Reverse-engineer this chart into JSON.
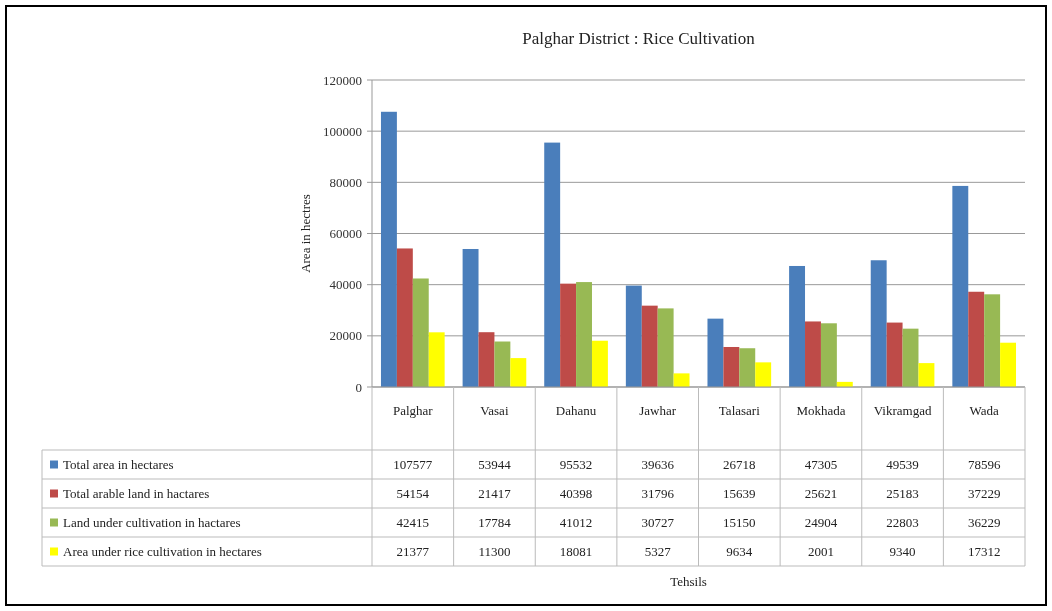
{
  "chart_data": {
    "type": "bar",
    "title": "Palghar District : Rice Cultivation",
    "annotations": [
      "Tehsils"
    ],
    "ylabel": "Area in hectres",
    "categories": [
      "Palghar",
      "Vasai",
      "Dahanu",
      "Jawhar",
      "Talasari",
      "Mokhada",
      "Vikramgad",
      "Wada"
    ],
    "series": [
      {
        "name": "Total area in hectares",
        "color": "#4a7ebb",
        "values": [
          107577,
          53944,
          95532,
          39636,
          26718,
          47305,
          49539,
          78596
        ]
      },
      {
        "name": "Total arable land in hactares",
        "color": "#be4b48",
        "values": [
          54154,
          21417,
          40398,
          31796,
          15639,
          25621,
          25183,
          37229
        ]
      },
      {
        "name": "Land under cultivation in hactares",
        "color": "#98b954",
        "values": [
          42415,
          17784,
          41012,
          30727,
          15150,
          24904,
          22803,
          36229
        ]
      },
      {
        "name": "Area under rice cultivation in hectares",
        "color": "#ffff00",
        "values": [
          21377,
          11300,
          18081,
          5327,
          9634,
          2001,
          9340,
          17312
        ]
      }
    ],
    "ylim": [
      0,
      120000
    ],
    "yticks": [
      0,
      20000,
      40000,
      60000,
      80000,
      100000,
      120000
    ],
    "grid": "y",
    "legend": "bottom",
    "data_labels": true
  }
}
